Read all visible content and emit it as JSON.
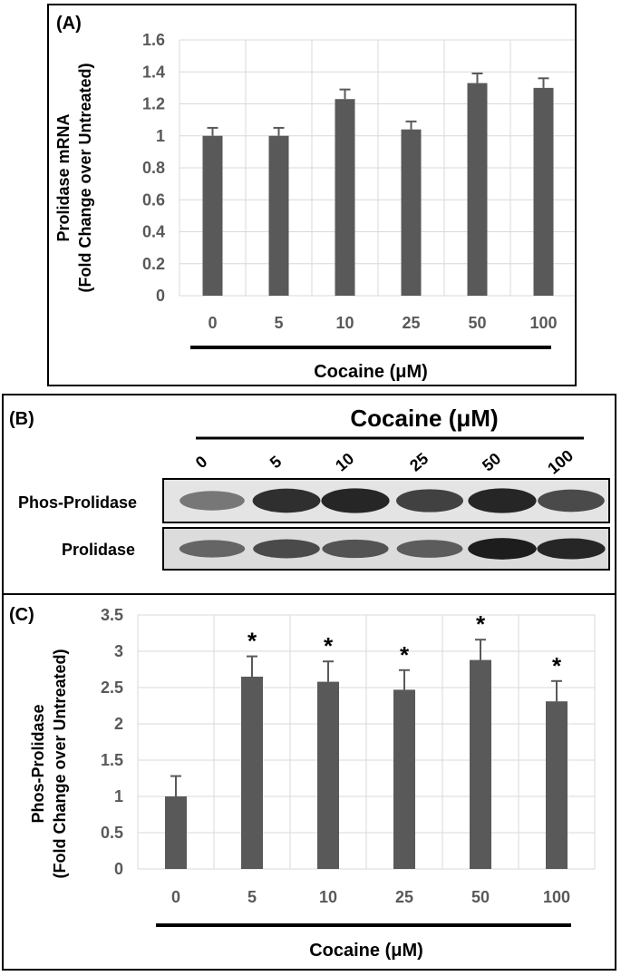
{
  "chart_data": [
    {
      "panel_label": "(A)",
      "type": "bar",
      "categories": [
        "0",
        "5",
        "10",
        "25",
        "50",
        "100"
      ],
      "values": [
        1.0,
        1.0,
        1.23,
        1.04,
        1.33,
        1.3
      ],
      "errors": [
        0.05,
        0.05,
        0.06,
        0.05,
        0.06,
        0.06
      ],
      "ylabel_line1": "Prolidase mRNA",
      "ylabel_line2": "(Fold Change over Untreated)",
      "xlabel": "Cocaine (μM)",
      "ylim": [
        0,
        1.6
      ],
      "yticks": [
        "0",
        "0.2",
        "0.4",
        "0.6",
        "0.8",
        "1",
        "1.2",
        "1.4",
        "1.6"
      ],
      "grid": true,
      "bar_color": "#595959"
    },
    {
      "panel_label": "(C)",
      "type": "bar",
      "categories": [
        "0",
        "5",
        "10",
        "25",
        "50",
        "100"
      ],
      "values": [
        1.0,
        2.65,
        2.58,
        2.47,
        2.88,
        2.31
      ],
      "errors": [
        0.28,
        0.28,
        0.28,
        0.27,
        0.28,
        0.28
      ],
      "significance": [
        "",
        "*",
        "*",
        "*",
        "*",
        "*"
      ],
      "ylabel_line1": "Phos-Prolidase",
      "ylabel_line2": "(Fold Change over Untreated)",
      "xlabel": "Cocaine (μM)",
      "ylim": [
        0,
        3.5
      ],
      "yticks": [
        "0",
        "0.5",
        "1",
        "1.5",
        "2",
        "2.5",
        "3",
        "3.5"
      ],
      "grid": true,
      "bar_color": "#595959"
    }
  ],
  "blot": {
    "panel_label": "(B)",
    "title": "Cocaine (μM)",
    "lanes": [
      "0",
      "5",
      "10",
      "25",
      "50",
      "100"
    ],
    "rows": [
      {
        "label": "Phos-Prolidase",
        "intensities": [
          0.45,
          0.85,
          0.9,
          0.75,
          0.9,
          0.7
        ]
      },
      {
        "label": "Prolidase",
        "intensities": [
          0.55,
          0.7,
          0.65,
          0.6,
          0.95,
          0.9
        ]
      }
    ]
  }
}
